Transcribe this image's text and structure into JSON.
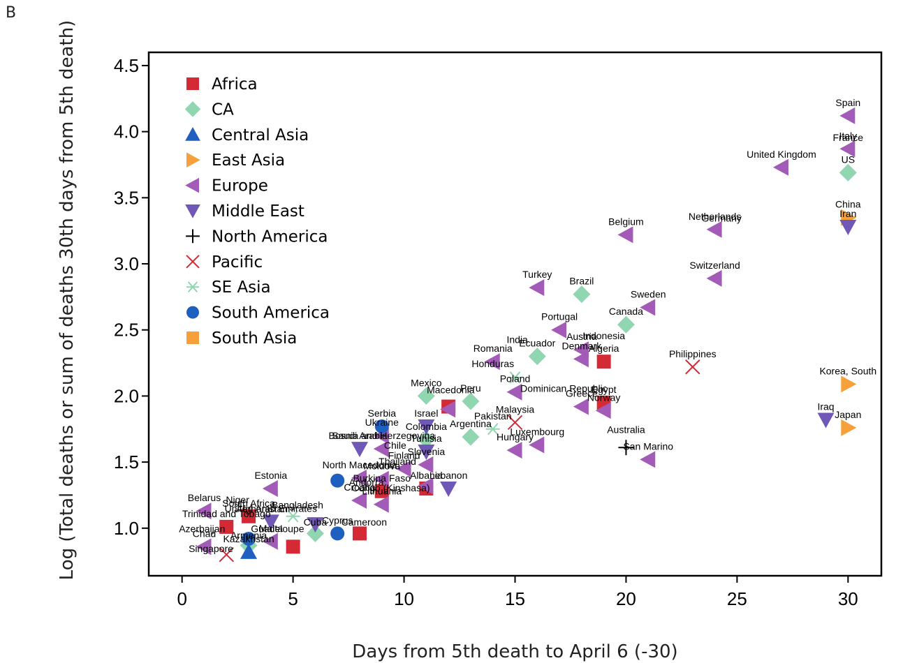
{
  "panel_label": "B",
  "chart_data": {
    "type": "scatter",
    "xlabel": "Days from 5th death to April 6 (-30)",
    "ylabel": "Log (Total deaths or sum of deaths 30th days from 5th death)",
    "xlim": [
      -1.5,
      31.5
    ],
    "ylim": [
      0.64,
      4.6
    ],
    "xticks": [
      0,
      5,
      10,
      15,
      20,
      25,
      30
    ],
    "yticks": [
      1.0,
      1.5,
      2.0,
      2.5,
      3.0,
      3.5,
      4.0,
      4.5
    ],
    "ytick_labels": [
      "1.0",
      "1.5",
      "2.0",
      "2.5",
      "3.0",
      "3.5",
      "4.0",
      "4.5"
    ],
    "legend_position": "top-left",
    "series": [
      {
        "name": "Africa",
        "marker": "square",
        "color": "#d42a35",
        "points": [
          {
            "x": 2,
            "y": 1.01,
            "label": "Trinidad and Tobago"
          },
          {
            "x": 3,
            "y": 1.09,
            "label": "South Africa"
          },
          {
            "x": 5,
            "y": 0.86,
            "label": ""
          },
          {
            "x": 8,
            "y": 0.96,
            "label": ""
          },
          {
            "x": 9,
            "y": 1.28,
            "label": "Burkina Faso"
          },
          {
            "x": 11,
            "y": 1.3,
            "label": "Albania"
          },
          {
            "x": 12,
            "y": 1.92,
            "label": ""
          },
          {
            "x": 19,
            "y": 2.26,
            "label": "Algeria"
          },
          {
            "x": 19,
            "y": 1.95,
            "label": "Egypt"
          }
        ]
      },
      {
        "name": "CA",
        "marker": "diamond",
        "color": "#8fd6b1",
        "points": [
          {
            "x": 3,
            "y": 0.87,
            "label": ""
          },
          {
            "x": 6,
            "y": 0.96,
            "label": ""
          },
          {
            "x": 11,
            "y": 2.0,
            "label": "Mexico"
          },
          {
            "x": 11,
            "y": 1.67,
            "label": "Colombia"
          },
          {
            "x": 13,
            "y": 1.96,
            "label": "Peru"
          },
          {
            "x": 13,
            "y": 1.69,
            "label": "Argentina"
          },
          {
            "x": 16,
            "y": 2.3,
            "label": "Ecuador"
          },
          {
            "x": 18,
            "y": 2.77,
            "label": "Brazil"
          },
          {
            "x": 20,
            "y": 2.54,
            "label": "Canada"
          },
          {
            "x": 30,
            "y": 3.69,
            "label": "US"
          }
        ]
      },
      {
        "name": "Central Asia",
        "marker": "triangle-up",
        "color": "#1f5fbf",
        "points": [
          {
            "x": 3,
            "y": 0.82,
            "label": "Kazakhstan"
          }
        ]
      },
      {
        "name": "East Asia",
        "marker": "triangle-right",
        "color": "#f5a03a",
        "points": [
          {
            "x": 30,
            "y": 3.35,
            "label": "China"
          },
          {
            "x": 30,
            "y": 2.09,
            "label": "Korea, South"
          },
          {
            "x": 30,
            "y": 1.76,
            "label": "Japan"
          }
        ]
      },
      {
        "name": "Europe",
        "marker": "triangle-left",
        "color": "#a35bb8",
        "points": [
          {
            "x": 30,
            "y": 4.12,
            "label": "Spain"
          },
          {
            "x": 30,
            "y": 3.87,
            "label": "Italy"
          },
          {
            "x": 27,
            "y": 3.73,
            "label": "United Kingdom"
          },
          {
            "x": 24,
            "y": 3.26,
            "label": "Netherlands"
          },
          {
            "x": 20,
            "y": 3.22,
            "label": "Belgium"
          },
          {
            "x": 24,
            "y": 2.89,
            "label": "Switzerland"
          },
          {
            "x": 21,
            "y": 2.67,
            "label": "Sweden"
          },
          {
            "x": 16,
            "y": 2.82,
            "label": "Turkey"
          },
          {
            "x": 17,
            "y": 2.5,
            "label": "Portugal"
          },
          {
            "x": 18,
            "y": 2.35,
            "label": "Austria"
          },
          {
            "x": 18,
            "y": 2.28,
            "label": "Denmark"
          },
          {
            "x": 14,
            "y": 2.26,
            "label": "Romania"
          },
          {
            "x": 15,
            "y": 2.03,
            "label": "Poland"
          },
          {
            "x": 18,
            "y": 1.92,
            "label": "Greece"
          },
          {
            "x": 19,
            "y": 1.89,
            "label": "Norway"
          },
          {
            "x": 16,
            "y": 1.63,
            "label": "Luxembourg"
          },
          {
            "x": 15,
            "y": 1.59,
            "label": "Hungary"
          },
          {
            "x": 21,
            "y": 1.52,
            "label": "San Marino"
          },
          {
            "x": 12,
            "y": 1.9,
            "label": ""
          },
          {
            "x": 9,
            "y": 1.7,
            "label": "Ukraine"
          },
          {
            "x": 9,
            "y": 1.6,
            "label": "Bosnia and Herzegovina"
          },
          {
            "x": 11,
            "y": 1.48,
            "label": "Slovenia"
          },
          {
            "x": 10,
            "y": 1.45,
            "label": "Finland"
          },
          {
            "x": 9,
            "y": 1.37,
            "label": "Moldova"
          },
          {
            "x": 8,
            "y": 1.21,
            "label": "Croatia"
          },
          {
            "x": 9,
            "y": 1.18,
            "label": "Lithuania"
          },
          {
            "x": 4,
            "y": 1.3,
            "label": "Estonia"
          },
          {
            "x": 1,
            "y": 1.13,
            "label": "Belarus"
          },
          {
            "x": 1,
            "y": 0.86,
            "label": "Chad"
          },
          {
            "x": 4,
            "y": 0.9,
            "label": "Malta"
          },
          {
            "x": 8,
            "y": 1.38,
            "label": "North Macedonia"
          },
          {
            "x": 11,
            "y": 1.32,
            "label": ""
          }
        ]
      },
      {
        "name": "Middle East",
        "marker": "triangle-down",
        "color": "#7059b6",
        "points": [
          {
            "x": 30,
            "y": 3.28,
            "label": "Iran"
          },
          {
            "x": 29,
            "y": 1.82,
            "label": "Iraq"
          },
          {
            "x": 12,
            "y": 1.3,
            "label": "Lebanon"
          },
          {
            "x": 11,
            "y": 1.77,
            "label": "Israel"
          },
          {
            "x": 8,
            "y": 1.6,
            "label": "Saudi Arabia"
          },
          {
            "x": 11,
            "y": 1.58,
            "label": "Tunisia"
          },
          {
            "x": 4,
            "y": 1.05,
            "label": "United Arab Emirates"
          },
          {
            "x": 6,
            "y": 1.03,
            "label": ""
          }
        ]
      },
      {
        "name": "North America",
        "marker": "plus",
        "color": "#000000",
        "points": [
          {
            "x": 20,
            "y": 1.61,
            "label": ""
          }
        ]
      },
      {
        "name": "Pacific",
        "marker": "x",
        "color": "#d42a35",
        "points": [
          {
            "x": 23,
            "y": 2.22,
            "label": "Philippines"
          },
          {
            "x": 15,
            "y": 1.8,
            "label": "Malaysia"
          },
          {
            "x": 2,
            "y": 0.8,
            "label": ""
          }
        ]
      },
      {
        "name": "SE Asia",
        "marker": "asterisk",
        "color": "#8fd6b1",
        "points": [
          {
            "x": 15,
            "y": 2.14,
            "label": ""
          },
          {
            "x": 14,
            "y": 1.75,
            "label": "Pakistan"
          },
          {
            "x": 5,
            "y": 1.09,
            "label": ""
          }
        ]
      },
      {
        "name": "South America",
        "marker": "circle",
        "color": "#1f5fbf",
        "points": [
          {
            "x": 9,
            "y": 1.77,
            "label": "Serbia"
          },
          {
            "x": 7,
            "y": 1.36,
            "label": ""
          },
          {
            "x": 7,
            "y": 0.96,
            "label": "Cyprus"
          },
          {
            "x": 3,
            "y": 0.92,
            "label": ""
          }
        ]
      },
      {
        "name": "South Asia",
        "marker": "square",
        "color": "#f5a03a",
        "points": []
      }
    ],
    "extra_labels": [
      {
        "x": 15.1,
        "y": 2.4,
        "text": "India"
      },
      {
        "x": 17.2,
        "y": 2.03,
        "text": "Dominican Republic"
      },
      {
        "x": 30,
        "y": 3.93,
        "text": "France"
      },
      {
        "x": 24.3,
        "y": 3.32,
        "text": "Germany"
      },
      {
        "x": 19,
        "y": 2.43,
        "text": "Indonesia"
      },
      {
        "x": 20,
        "y": 1.72,
        "text": "Australia"
      },
      {
        "x": 2.5,
        "y": 1.19,
        "text": "Niger"
      },
      {
        "x": 5.2,
        "y": 1.15,
        "text": "Bangladesh"
      },
      {
        "x": 6,
        "y": 1.02,
        "text": "Cuba"
      },
      {
        "x": 8.2,
        "y": 1.02,
        "text": "Cameroon"
      },
      {
        "x": 3,
        "y": 0.92,
        "text": "Armenia"
      },
      {
        "x": 1.3,
        "y": 0.82,
        "text": "Singapore"
      },
      {
        "x": 4.3,
        "y": 0.97,
        "text": "Guadeloupe"
      },
      {
        "x": 0.9,
        "y": 0.97,
        "text": "Azerbaijan"
      },
      {
        "x": 9.6,
        "y": 1.6,
        "text": "Chile"
      },
      {
        "x": 9.4,
        "y": 1.28,
        "text": "Congo (Kinshasa)"
      },
      {
        "x": 12.1,
        "y": 2.02,
        "text": "Macedonia"
      },
      {
        "x": 3.6,
        "y": 1.12,
        "text": "Afghanistan"
      },
      {
        "x": 8.3,
        "y": 1.32,
        "text": "Andorra"
      },
      {
        "x": 14,
        "y": 2.22,
        "text": "Honduras"
      },
      {
        "x": 9.7,
        "y": 1.48,
        "text": "Thailand"
      }
    ]
  },
  "legend": {
    "items": [
      {
        "label": "Africa",
        "marker": "square",
        "color": "#d42a35"
      },
      {
        "label": "CA",
        "marker": "diamond",
        "color": "#8fd6b1"
      },
      {
        "label": "Central Asia",
        "marker": "triangle-up",
        "color": "#1f5fbf"
      },
      {
        "label": "East Asia",
        "marker": "triangle-right",
        "color": "#f5a03a"
      },
      {
        "label": "Europe",
        "marker": "triangle-left",
        "color": "#a35bb8"
      },
      {
        "label": "Middle East",
        "marker": "triangle-down",
        "color": "#7059b6"
      },
      {
        "label": "North America",
        "marker": "plus",
        "color": "#000000"
      },
      {
        "label": "Pacific",
        "marker": "x",
        "color": "#d42a35"
      },
      {
        "label": "SE Asia",
        "marker": "asterisk",
        "color": "#8fd6b1"
      },
      {
        "label": "South America",
        "marker": "circle",
        "color": "#1f5fbf"
      },
      {
        "label": "South Asia",
        "marker": "square",
        "color": "#f5a03a"
      }
    ]
  }
}
